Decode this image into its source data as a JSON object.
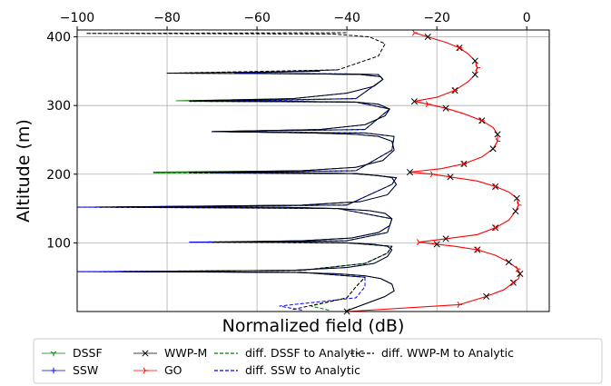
{
  "chart_data": {
    "type": "line",
    "title": "",
    "xlabel": "Normalized field (dB)",
    "ylabel": "Altitude (m)",
    "xlim": [
      -100,
      5
    ],
    "ylim": [
      0,
      410
    ],
    "x_axis_position": "top",
    "grid": true,
    "xticks": [
      -100,
      -80,
      -60,
      -40,
      -20,
      0
    ],
    "yticks": [
      100,
      200,
      300,
      400
    ],
    "xtick_labels": [
      "−100",
      "−80",
      "−60",
      "−40",
      "−20",
      "0"
    ],
    "ytick_labels": [
      "100",
      "200",
      "300",
      "400"
    ],
    "legend_position": "below plot",
    "series": [
      {
        "name": "DSSF",
        "color": "#008000",
        "style": "solid, tri-down marker",
        "x": [
          -40.5,
          -31.5,
          -29.5,
          -30,
          -32.5,
          -36,
          -42,
          -52,
          -88,
          -52,
          -40,
          -34,
          -31,
          -30,
          -31,
          -34,
          -40,
          -50,
          -70,
          -50,
          -39,
          -33,
          -30.5,
          -30,
          -31.5,
          -35,
          -42,
          -55,
          -88,
          -50,
          -37,
          -31,
          -29,
          -30,
          -33,
          -39,
          -50,
          -83,
          -50,
          -38,
          -32,
          -29.5,
          -30,
          -33,
          -38,
          -48,
          -70,
          -46,
          -36,
          -31.5,
          -30.5,
          -33,
          -38,
          -52,
          -78,
          -52,
          -40,
          -34,
          -32,
          -32.5,
          -37,
          -46,
          -65,
          -46
        ],
        "y": [
          0,
          22,
          30,
          40,
          48,
          52,
          55,
          57,
          58,
          60,
          64,
          70,
          80,
          90,
          95,
          98,
          100,
          101,
          101,
          103,
          107,
          115,
          125,
          135,
          143,
          147,
          150,
          152,
          152,
          155,
          160,
          170,
          185,
          195,
          198,
          201,
          202,
          203,
          205,
          210,
          220,
          235,
          248,
          255,
          258,
          260,
          262,
          265,
          272,
          285,
          295,
          302,
          305,
          306,
          307,
          310,
          318,
          328,
          338,
          342,
          345,
          346,
          347,
          350
        ]
      },
      {
        "name": "SSW",
        "color": "#0000ff",
        "style": "solid, plus marker",
        "x": [
          -40.5,
          -31.5,
          -29.5,
          -30,
          -32.5,
          -36,
          -42,
          -52,
          -100,
          -52,
          -40,
          -34,
          -31,
          -30,
          -31,
          -34,
          -40,
          -50,
          -75,
          -50,
          -39,
          -33,
          -30.5,
          -30,
          -31.5,
          -35,
          -42,
          -55,
          -100,
          -50,
          -37,
          -31,
          -29,
          -30,
          -33,
          -39,
          -50,
          -70,
          -50,
          -38,
          -32,
          -29.5,
          -30,
          -33,
          -38,
          -48,
          -70,
          -46,
          -36,
          -31.5,
          -30.5,
          -33,
          -38,
          -52,
          -66,
          -52,
          -40,
          -34,
          -32,
          -32.5,
          -37,
          -46,
          -65,
          -46
        ],
        "y": [
          0,
          22,
          30,
          40,
          48,
          52,
          55,
          57,
          58,
          60,
          64,
          70,
          80,
          90,
          95,
          98,
          100,
          101,
          101,
          103,
          107,
          115,
          125,
          135,
          143,
          147,
          150,
          152,
          152,
          155,
          160,
          170,
          185,
          195,
          198,
          201,
          202,
          203,
          205,
          210,
          220,
          235,
          248,
          255,
          258,
          260,
          262,
          265,
          272,
          285,
          295,
          302,
          305,
          306,
          307,
          310,
          318,
          328,
          338,
          342,
          345,
          346,
          347,
          350
        ]
      },
      {
        "name": "WWP-M",
        "color": "#000000",
        "style": "solid, x marker",
        "x": [
          -40.5,
          -31.5,
          -29.5,
          -30,
          -32.5,
          -36,
          -42,
          -52,
          -90,
          -52,
          -40,
          -34,
          -31,
          -30,
          -31,
          -34,
          -40,
          -50,
          -70,
          -50,
          -39,
          -33,
          -30.5,
          -30,
          -31.5,
          -35,
          -42,
          -55,
          -95,
          -50,
          -37,
          -31,
          -29,
          -30,
          -33,
          -39,
          -50,
          -75,
          -50,
          -38,
          -32,
          -29.5,
          -30,
          -33,
          -38,
          -48,
          -70,
          -46,
          -36,
          -31.5,
          -30.5,
          -33,
          -38,
          -52,
          -75,
          -52,
          -40,
          -34,
          -32,
          -32.5,
          -37,
          -46,
          -80,
          -46
        ],
        "y": [
          0,
          22,
          30,
          40,
          48,
          52,
          55,
          57,
          58,
          60,
          64,
          70,
          80,
          90,
          95,
          98,
          100,
          101,
          101,
          103,
          107,
          115,
          125,
          135,
          143,
          147,
          150,
          152,
          152,
          155,
          160,
          170,
          185,
          195,
          198,
          201,
          202,
          203,
          205,
          210,
          220,
          235,
          248,
          255,
          258,
          260,
          262,
          265,
          272,
          285,
          295,
          302,
          305,
          306,
          307,
          310,
          318,
          328,
          338,
          342,
          345,
          346,
          347,
          350
        ]
      },
      {
        "name": "GO",
        "color": "#ff0000",
        "style": "solid, tri-right marker",
        "x": [
          -40,
          -15,
          -9,
          -5,
          -3,
          -1.8,
          -1.5,
          -2,
          -4,
          -7,
          -11,
          -16,
          -20,
          -24,
          -18,
          -11,
          -7,
          -4,
          -2.5,
          -1.8,
          -2.2,
          -4,
          -7,
          -11,
          -17,
          -21,
          -26,
          -19,
          -14,
          -10,
          -7.5,
          -6.5,
          -6.5,
          -7.5,
          -10,
          -14,
          -18,
          -22,
          -25,
          -20,
          -16,
          -13,
          -11.5,
          -11,
          -11.5,
          -13,
          -15,
          -18,
          -22,
          -25
        ],
        "y": [
          0,
          10,
          22,
          32,
          42,
          48,
          55,
          62,
          72,
          82,
          90,
          95,
          98,
          101,
          106,
          112,
          122,
          133,
          146,
          155,
          165,
          174,
          182,
          190,
          196,
          200,
          203,
          208,
          215,
          225,
          237,
          248,
          258,
          268,
          278,
          288,
          296,
          302,
          306,
          312,
          322,
          335,
          345,
          355,
          365,
          375,
          384,
          392,
          400,
          406
        ]
      },
      {
        "name": "diff. DSSF to Analytic",
        "color": "#008000",
        "style": "dashed",
        "x": [
          -44,
          -48,
          -40,
          -38,
          -36,
          -50,
          -88,
          -50,
          -36,
          -31,
          -30,
          -40,
          -70,
          -40,
          -31,
          -30,
          -42,
          -88,
          -40,
          -30,
          -29,
          -38,
          -83,
          -38,
          -30,
          -29.5,
          -36,
          -70,
          -36,
          -30.5,
          -38,
          -75,
          -38,
          -32,
          -33,
          -40,
          -64,
          -42
        ],
        "y": [
          2,
          8,
          20,
          36,
          50,
          57,
          58,
          60,
          70,
          85,
          95,
          100,
          101,
          103,
          115,
          135,
          150,
          152,
          155,
          185,
          195,
          201,
          202,
          205,
          235,
          255,
          260,
          262,
          265,
          295,
          305,
          306,
          310,
          338,
          345,
          346,
          347,
          352
        ]
      },
      {
        "name": "diff. SSW to Analytic",
        "color": "#0000ff",
        "style": "dashed",
        "x": [
          -50,
          -55,
          -38,
          -36,
          -36,
          -50,
          -100,
          -50,
          -36,
          -31,
          -30,
          -40,
          -75,
          -40,
          -31,
          -30,
          -42,
          -100,
          -40,
          -30,
          -29,
          -38,
          -70,
          -38,
          -30,
          -29.5,
          -36,
          -70,
          -36,
          -30.5,
          -38,
          -66,
          -38,
          -32,
          -33,
          -40,
          -65,
          -42
        ],
        "y": [
          2,
          8,
          20,
          36,
          50,
          57,
          58,
          60,
          70,
          85,
          95,
          100,
          101,
          103,
          115,
          135,
          150,
          152,
          155,
          185,
          195,
          201,
          202,
          205,
          235,
          255,
          260,
          262,
          265,
          295,
          305,
          306,
          310,
          338,
          345,
          346,
          347,
          352
        ]
      },
      {
        "name": "diff. WWP-M to Analytic",
        "color": "#000000",
        "style": "dashed",
        "x": [
          -52,
          -40,
          -38,
          -36,
          -50,
          -90,
          -50,
          -36,
          -31,
          -30,
          -40,
          -70,
          -40,
          -31,
          -30,
          -42,
          -95,
          -40,
          -30,
          -29,
          -38,
          -75,
          -38,
          -30,
          -29.5,
          -36,
          -70,
          -36,
          -30.5,
          -38,
          -75,
          -38,
          -32,
          -33,
          -40,
          -80,
          -42,
          -33,
          -31.5,
          -35,
          -43,
          -98,
          -40
        ],
        "y": [
          3,
          20,
          36,
          50,
          57,
          58,
          60,
          70,
          85,
          95,
          100,
          101,
          103,
          115,
          135,
          150,
          152,
          155,
          185,
          195,
          201,
          202,
          205,
          235,
          255,
          260,
          262,
          265,
          295,
          305,
          306,
          310,
          338,
          345,
          346,
          347,
          352,
          372,
          390,
          400,
          404,
          405,
          406
        ]
      }
    ],
    "legend": [
      {
        "label": "DSSF",
        "series": 0,
        "marker": "tri-down",
        "color": "#008000",
        "line": "solid"
      },
      {
        "label": "SSW",
        "series": 1,
        "marker": "plus",
        "color": "#0000ff",
        "line": "solid"
      },
      {
        "label": "WWP-M",
        "series": 2,
        "marker": "x",
        "color": "#000000",
        "line": "solid"
      },
      {
        "label": "GO",
        "series": 3,
        "marker": "tri-right",
        "color": "#ff0000",
        "line": "solid"
      },
      {
        "label": "diff. DSSF to Analytic",
        "series": 4,
        "marker": "none",
        "color": "#008000",
        "line": "dashed"
      },
      {
        "label": "diff. SSW to Analytic",
        "series": 5,
        "marker": "none",
        "color": "#0000ff",
        "line": "dashed"
      },
      {
        "label": "diff. WWP-M to Analytic",
        "series": 6,
        "marker": "none",
        "color": "#000000",
        "line": "dashed"
      }
    ]
  }
}
